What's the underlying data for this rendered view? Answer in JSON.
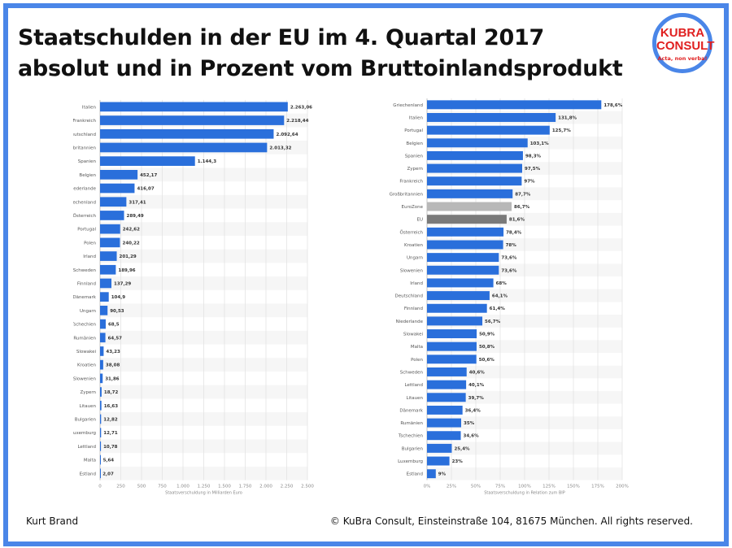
{
  "title": {
    "line1": "Staatschulden in der EU im 4. Quartal 2017",
    "line2": "absolut und in Prozent vom Bruttoinlandsprodukt"
  },
  "logo": {
    "line1": "KUBRA",
    "line2": "CONSULT",
    "slogan": "Acta, non verba!"
  },
  "footer": {
    "author": "Kurt Brand",
    "copyright": "© KuBra Consult, Einsteinstraße 104, 81675 München. All rights reserved."
  },
  "colors": {
    "bar": "#2a6fdb",
    "eurozone": "#b8b8b8",
    "eu": "#7a7a7a",
    "frame": "#4a86e8"
  },
  "chart_data": [
    {
      "type": "bar",
      "orientation": "horizontal",
      "xlabel": "Staatsverschuldung in Milliarden Euro",
      "xlim": [
        0,
        2500
      ],
      "ticks": [
        "0",
        "250",
        "500",
        "750",
        "1.000",
        "1.250",
        "1.500",
        "1.750",
        "2.000",
        "2.250",
        "2.500"
      ],
      "grid": true,
      "categories": [
        "Italien",
        "Frankreich",
        "Deutschland",
        "Großbritannien",
        "Spanien",
        "Belgien",
        "Niederlande",
        "Griechenland",
        "Österreich",
        "Portugal",
        "Polen",
        "Irland",
        "Schweden",
        "Finnland",
        "Dänemark",
        "Ungarn",
        "Tschechien",
        "Rumänien",
        "Slowakei",
        "Kroatien",
        "Slowenien",
        "Zypern",
        "Litauen",
        "Bulgarien",
        "Luxemburg",
        "Lettland",
        "Malta",
        "Estland"
      ],
      "values": [
        2263.06,
        2218.44,
        2092.64,
        2013.32,
        1144.3,
        452.17,
        416.07,
        317.41,
        289.49,
        242.62,
        240.22,
        201.29,
        189.96,
        137.29,
        104.9,
        90.53,
        68.5,
        64.57,
        43.23,
        38.08,
        31.86,
        18.72,
        16.63,
        12.82,
        12.71,
        10.78,
        5.64,
        2.07
      ],
      "labels": [
        "2.263,06",
        "2.218,44",
        "2.092,64",
        "2.013,32",
        "1.144,3",
        "452,17",
        "416,07",
        "317,41",
        "289,49",
        "242,62",
        "240,22",
        "201,29",
        "189,96",
        "137,29",
        "104,9",
        "90,53",
        "68,5",
        "64,57",
        "43,23",
        "38,08",
        "31,86",
        "18,72",
        "16,63",
        "12,82",
        "12,71",
        "10,78",
        "5,64",
        "2,07"
      ]
    },
    {
      "type": "bar",
      "orientation": "horizontal",
      "xlabel": "Staatsverschuldung in Relation zum BIP",
      "xlim": [
        0,
        200
      ],
      "ticks": [
        "0%",
        "25%",
        "50%",
        "75%",
        "100%",
        "125%",
        "150%",
        "175%",
        "200%"
      ],
      "grid": true,
      "categories": [
        "Griechenland",
        "Italien",
        "Portugal",
        "Belgien",
        "Spanien",
        "Zypern",
        "Frankreich",
        "Großbritannien",
        "EuroZone",
        "EU",
        "Österreich",
        "Kroatien",
        "Ungarn",
        "Slowenien",
        "Irland",
        "Deutschland",
        "Finnland",
        "Niederlande",
        "Slowakei",
        "Malta",
        "Polen",
        "Schweden",
        "Lettland",
        "Litauen",
        "Dänemark",
        "Rumänien",
        "Tschechien",
        "Bulgarien",
        "Luxemburg",
        "Estland"
      ],
      "values": [
        178.6,
        131.8,
        125.7,
        103.1,
        98.3,
        97.5,
        97,
        87.7,
        86.7,
        81.6,
        78.4,
        78,
        73.6,
        73.6,
        68,
        64.1,
        61.4,
        56.7,
        50.9,
        50.8,
        50.6,
        40.6,
        40.1,
        39.7,
        36.4,
        35,
        34.6,
        25.4,
        23,
        9
      ],
      "labels": [
        "178,6%",
        "131,8%",
        "125,7%",
        "103,1%",
        "98,3%",
        "97,5%",
        "97%",
        "87,7%",
        "86,7%",
        "81,6%",
        "78,4%",
        "78%",
        "73,6%",
        "73,6%",
        "68%",
        "64,1%",
        "61,4%",
        "56,7%",
        "50,9%",
        "50,8%",
        "50,6%",
        "40,6%",
        "40,1%",
        "39,7%",
        "36,4%",
        "35%",
        "34,6%",
        "25,4%",
        "23%",
        "9%"
      ]
    }
  ]
}
